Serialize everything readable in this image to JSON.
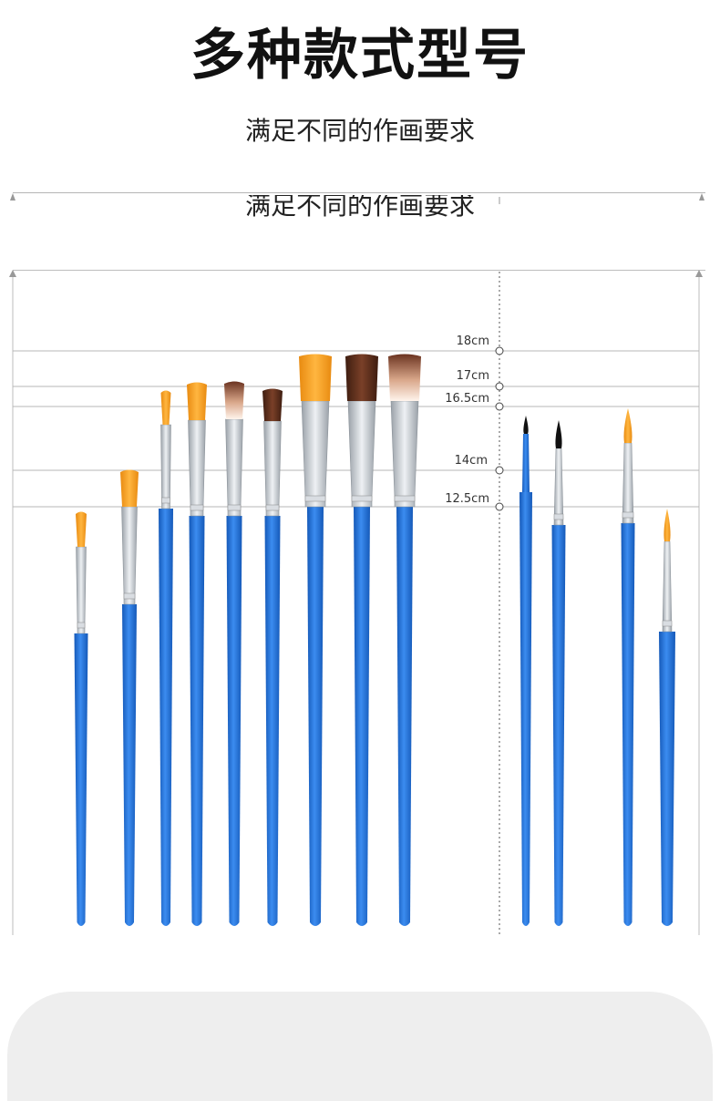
{
  "title": "多种款式型号",
  "subtitle": "满足不同的作画要求",
  "ghost_text": "满足不同的作画要求",
  "measurements": [
    {
      "label": "18cm"
    },
    {
      "label": "17cm"
    },
    {
      "label": "16.5cm"
    },
    {
      "label": "14cm"
    },
    {
      "label": "12.5cm"
    }
  ],
  "brush_groups": [
    {
      "name": "flat",
      "count": 9,
      "bristle_colors": [
        "orange",
        "orange",
        "orange",
        "orange",
        "white-brown",
        "dark-brown",
        "orange",
        "dark-brown",
        "white-brown"
      ]
    },
    {
      "name": "round",
      "count": 4,
      "bristle_colors": [
        "black",
        "black",
        "orange",
        "orange"
      ]
    }
  ],
  "colors": {
    "handle": "#1e6fd9",
    "handle_dark": "#1559b8",
    "ferrule": "#c9ced4",
    "orange": "#f5a020",
    "dark_brown": "#5a2e1d",
    "black": "#111111",
    "guide_line": "#b7b7b7"
  }
}
